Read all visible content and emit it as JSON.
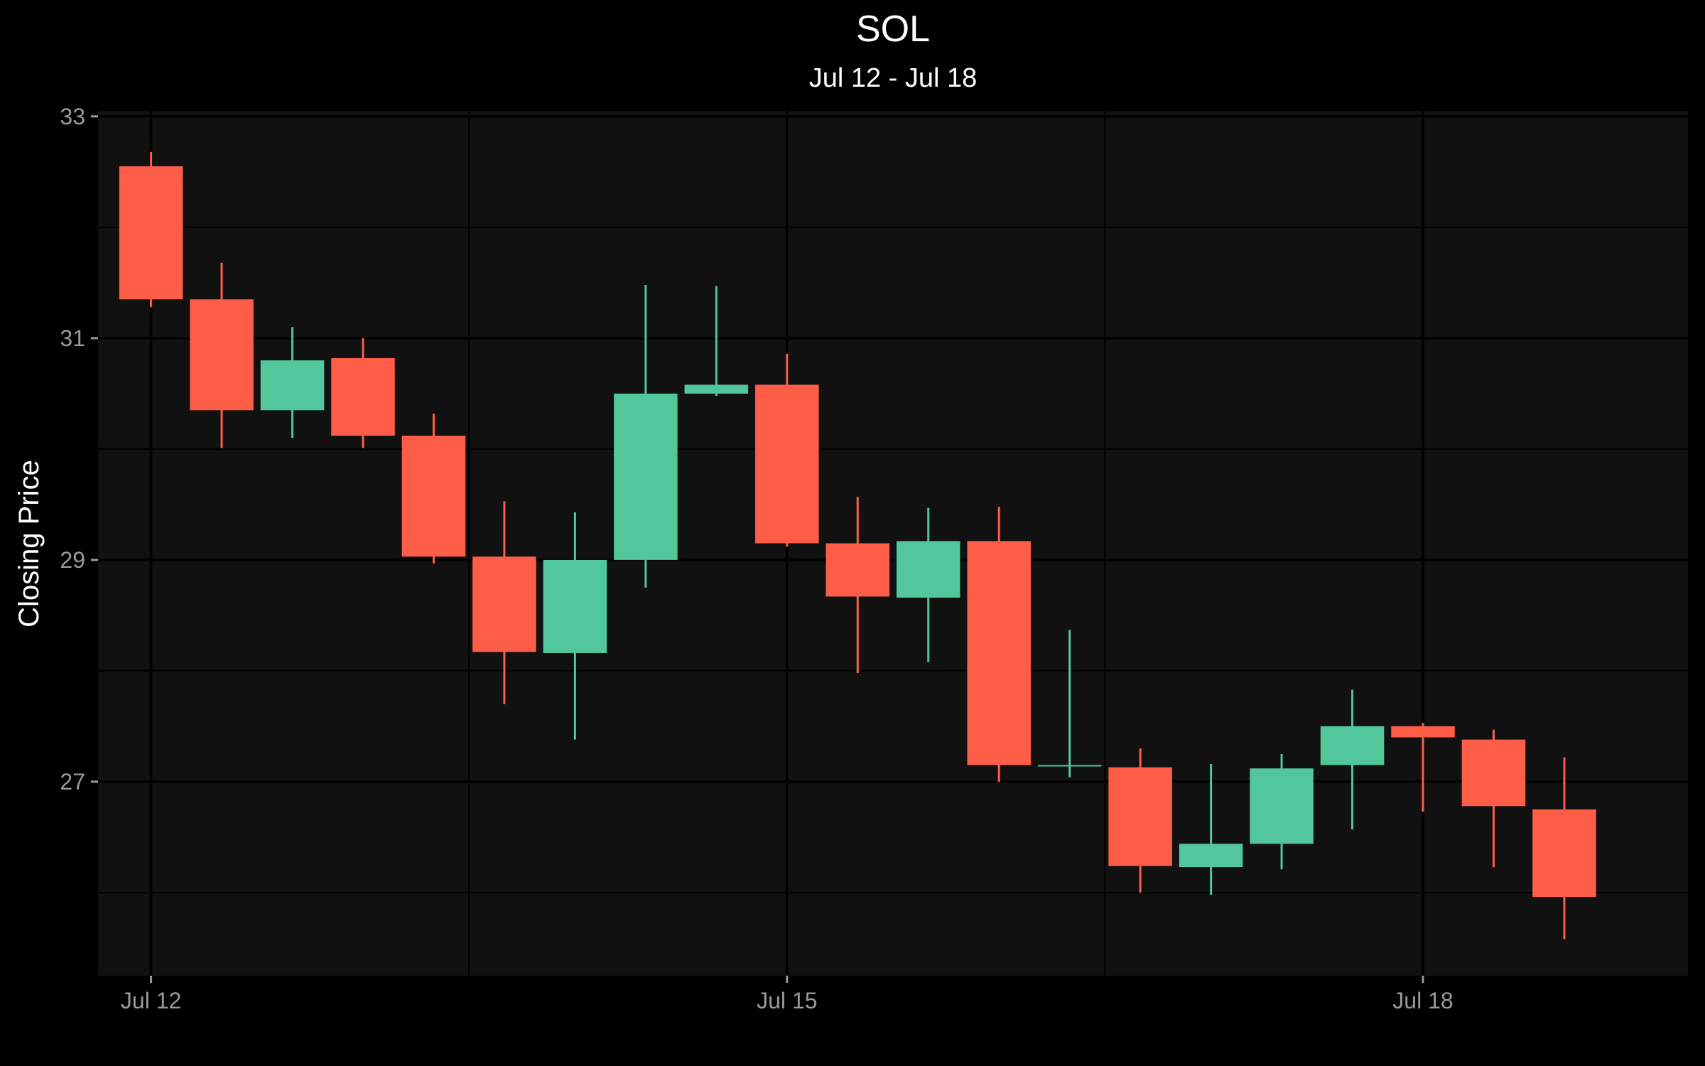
{
  "chart_data": {
    "type": "candlestick",
    "title": "SOL",
    "subtitle": "Jul 12 - Jul 18",
    "xlabel": "",
    "ylabel": "Closing Price",
    "ylim": [
      25.25,
      33.05
    ],
    "yticks": [
      27,
      29,
      31,
      33
    ],
    "xlim": [
      "2024-07-11 18:00",
      "2024-07-19 06:00"
    ],
    "xticks": [
      {
        "value": "2024-07-12 00:00",
        "label": "Jul 12"
      },
      {
        "value": "2024-07-15 00:00",
        "label": "Jul 15"
      },
      {
        "value": "2024-07-18 00:00",
        "label": "Jul 18"
      }
    ],
    "grid": true,
    "up_color": "#52c79b",
    "down_color": "#fe5d47",
    "background": "#111111",
    "candles": [
      {
        "t": "2024-07-12 00:00",
        "open": 32.55,
        "high": 32.68,
        "low": 31.28,
        "close": 31.35
      },
      {
        "t": "2024-07-12 08:00",
        "open": 31.35,
        "high": 31.68,
        "low": 30.01,
        "close": 30.35
      },
      {
        "t": "2024-07-12 16:00",
        "open": 30.35,
        "high": 31.1,
        "low": 30.1,
        "close": 30.8
      },
      {
        "t": "2024-07-13 00:00",
        "open": 30.82,
        "high": 31.0,
        "low": 30.01,
        "close": 30.12
      },
      {
        "t": "2024-07-13 08:00",
        "open": 30.12,
        "high": 30.32,
        "low": 28.97,
        "close": 29.03
      },
      {
        "t": "2024-07-13 16:00",
        "open": 29.03,
        "high": 29.53,
        "low": 27.7,
        "close": 28.17
      },
      {
        "t": "2024-07-14 00:00",
        "open": 28.16,
        "high": 29.43,
        "low": 27.38,
        "close": 29.0
      },
      {
        "t": "2024-07-14 08:00",
        "open": 29.0,
        "high": 31.48,
        "low": 28.75,
        "close": 30.5
      },
      {
        "t": "2024-07-14 16:00",
        "open": 30.5,
        "high": 31.47,
        "low": 30.48,
        "close": 30.58
      },
      {
        "t": "2024-07-15 00:00",
        "open": 30.58,
        "high": 30.86,
        "low": 29.12,
        "close": 29.15
      },
      {
        "t": "2024-07-15 08:00",
        "open": 29.15,
        "high": 29.57,
        "low": 27.98,
        "close": 28.67
      },
      {
        "t": "2024-07-15 16:00",
        "open": 28.66,
        "high": 29.47,
        "low": 28.08,
        "close": 29.17
      },
      {
        "t": "2024-07-16 00:00",
        "open": 29.17,
        "high": 29.48,
        "low": 27.0,
        "close": 27.15
      },
      {
        "t": "2024-07-16 08:00",
        "open": 27.14,
        "high": 28.37,
        "low": 27.04,
        "close": 27.15
      },
      {
        "t": "2024-07-16 16:00",
        "open": 27.13,
        "high": 27.3,
        "low": 26.0,
        "close": 26.24
      },
      {
        "t": "2024-07-17 00:00",
        "open": 26.23,
        "high": 27.16,
        "low": 25.98,
        "close": 26.44
      },
      {
        "t": "2024-07-17 08:00",
        "open": 26.44,
        "high": 27.25,
        "low": 26.21,
        "close": 27.12
      },
      {
        "t": "2024-07-17 16:00",
        "open": 27.15,
        "high": 27.83,
        "low": 26.57,
        "close": 27.5
      },
      {
        "t": "2024-07-18 00:00",
        "open": 27.5,
        "high": 27.53,
        "low": 26.73,
        "close": 27.4
      },
      {
        "t": "2024-07-18 08:00",
        "open": 27.38,
        "high": 27.47,
        "low": 26.23,
        "close": 26.78
      },
      {
        "t": "2024-07-18 16:00",
        "open": 26.75,
        "high": 27.22,
        "low": 25.58,
        "close": 25.96
      }
    ]
  }
}
